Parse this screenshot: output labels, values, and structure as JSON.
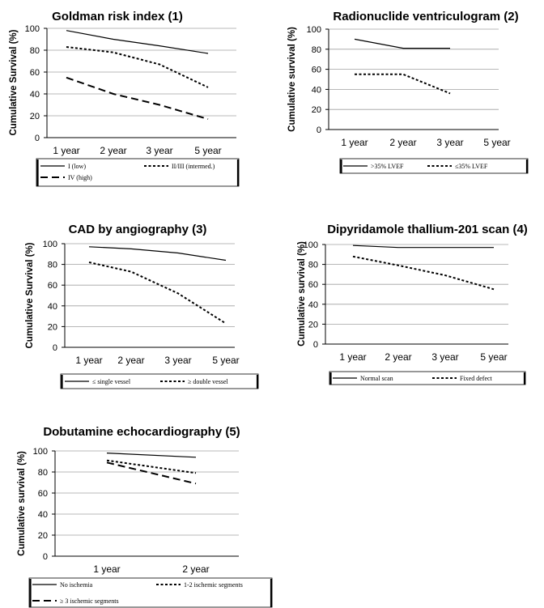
{
  "chart_data": [
    {
      "type": "line",
      "title": "Goldman risk index (1)",
      "ylabel": "Cumulative Survival (%)",
      "ylim": [
        0,
        100
      ],
      "yticks": [
        "0",
        "20",
        "40",
        "60",
        "80",
        "100"
      ],
      "categories": [
        "1 year",
        "2 year",
        "3 year",
        "5 year"
      ],
      "series": [
        {
          "name": "I (low)",
          "style": "solid",
          "values": [
            98,
            90,
            84,
            77
          ]
        },
        {
          "name": "II/III (intermed.)",
          "style": "dotted",
          "values": [
            83,
            78,
            67,
            46
          ]
        },
        {
          "name": "IV (high)",
          "style": "dashed",
          "values": [
            55,
            40,
            30,
            17
          ]
        }
      ],
      "legend_position": "bottom"
    },
    {
      "type": "line",
      "title": "Radionuclide ventriculogram (2)",
      "ylabel": "Cumulative survival (%)",
      "ylim": [
        0,
        100
      ],
      "yticks": [
        "0",
        "20",
        "40",
        "60",
        "80",
        "100"
      ],
      "categories": [
        "1 year",
        "2 year",
        "3 year",
        "5 year"
      ],
      "series": [
        {
          "name": ">35% LVEF",
          "style": "solid",
          "values": [
            90,
            81,
            81,
            null
          ]
        },
        {
          "name": "≤35% LVEF",
          "style": "dotted",
          "values": [
            55,
            55,
            36,
            null
          ]
        }
      ],
      "legend_position": "bottom"
    },
    {
      "type": "line",
      "title": "CAD by angiography (3)",
      "ylabel": "Cumulative Survival (%)",
      "ylim": [
        0,
        100
      ],
      "yticks": [
        "0",
        "20",
        "40",
        "60",
        "80",
        "100"
      ],
      "categories": [
        "1 year",
        "2 year",
        "3 year",
        "5 year"
      ],
      "series": [
        {
          "name": "≤ single vessel",
          "style": "solid",
          "values": [
            97,
            95,
            91,
            84
          ]
        },
        {
          "name": "≥ double vessel",
          "style": "dotted",
          "values": [
            82,
            73,
            52,
            23
          ]
        }
      ],
      "legend_position": "bottom"
    },
    {
      "type": "line",
      "title": "Dipyridamole thallium-201 scan (4)",
      "ylabel": "Cumulative survival (%)",
      "ylim": [
        0,
        100
      ],
      "yticks": [
        "0",
        "20",
        "40",
        "60",
        "80",
        "100"
      ],
      "categories": [
        "1 year",
        "2 year",
        "3 year",
        "5 year"
      ],
      "series": [
        {
          "name": "Normal scan",
          "style": "solid",
          "values": [
            99,
            97,
            97,
            97
          ]
        },
        {
          "name": "Fixed defect",
          "style": "dotted",
          "values": [
            88,
            79,
            69,
            55
          ]
        }
      ],
      "legend_position": "bottom"
    },
    {
      "type": "line",
      "title": "Dobutamine echocardiography (5)",
      "ylabel": "Cumulative survival (%)",
      "ylim": [
        0,
        100
      ],
      "yticks": [
        "0",
        "20",
        "40",
        "60",
        "80",
        "100"
      ],
      "categories": [
        "1 year",
        "2 year"
      ],
      "series": [
        {
          "name": "No ischemia",
          "style": "solid",
          "values": [
            98,
            94
          ]
        },
        {
          "name": "1-2 ischemic segments",
          "style": "dotted",
          "values": [
            91,
            79
          ]
        },
        {
          "name": "≥ 3 ischemic segments",
          "style": "dashed",
          "values": [
            89,
            69
          ]
        }
      ],
      "legend_position": "bottom"
    }
  ]
}
